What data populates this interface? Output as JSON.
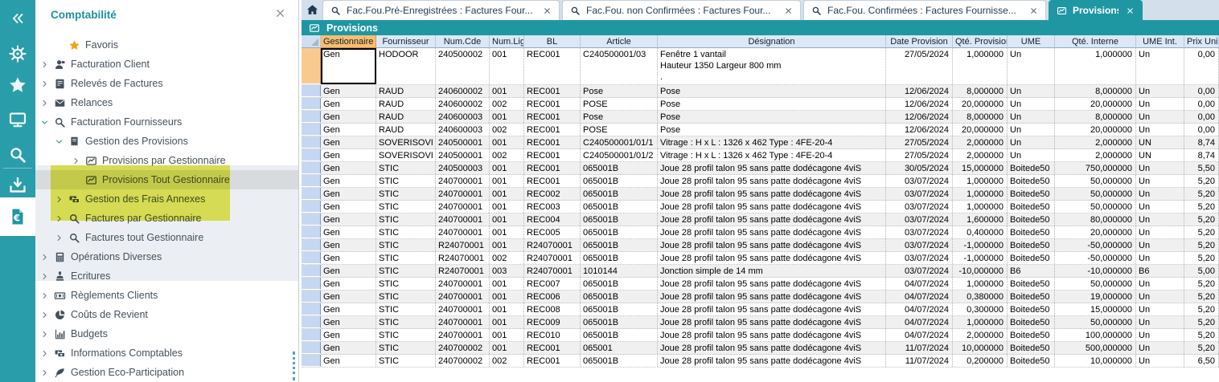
{
  "colors": {
    "teal_bar": "#1f97a3",
    "rail_teal": "#2a9daa",
    "sidebar_title_teal": "#1b93a0",
    "highlight_yellow": "#e7ea55",
    "selected_row_gray": "#d8dbde",
    "header_orange": "#f6be72",
    "rowhead_blue": "#c6d7f1",
    "rowhead_selected_orange": "#f9ca90",
    "favorites_star": "#f2a60d"
  },
  "rail": {
    "items": [
      {
        "name": "collapse",
        "icon": "chevrons-left",
        "active": false
      },
      {
        "name": "settings",
        "icon": "wheel",
        "active": false
      },
      {
        "name": "favorites",
        "icon": "star",
        "active": false
      },
      {
        "name": "workstation",
        "icon": "monitor",
        "active": false
      },
      {
        "name": "search",
        "icon": "search",
        "active": false
      },
      {
        "name": "import",
        "icon": "download-tray",
        "active": false
      },
      {
        "name": "accounting",
        "icon": "euro-document",
        "active": true
      }
    ]
  },
  "sidebar": {
    "title": "Comptabilité",
    "close_icon": "close",
    "items": [
      {
        "label": "Favoris",
        "icon": "star",
        "depth": 1,
        "chevron": "none",
        "icon_color": "#f2a60d"
      },
      {
        "label": "Facturation Client",
        "icon": "person",
        "depth": 0,
        "chevron": "collapsed"
      },
      {
        "label": "Relevés de Factures",
        "icon": "invoice-sheet",
        "depth": 0,
        "chevron": "collapsed"
      },
      {
        "label": "Relances",
        "icon": "envelope",
        "depth": 0,
        "chevron": "collapsed"
      },
      {
        "label": "Facturation Fournisseurs",
        "icon": "search",
        "depth": 0,
        "chevron": "expanded"
      },
      {
        "label": "Gestion des Provisions",
        "icon": "receipt",
        "depth": 1,
        "chevron": "expanded",
        "highlighted": true
      },
      {
        "label": "Provisions par Gestionnaire",
        "icon": "chart-line",
        "depth": 2,
        "chevron": "collapsed",
        "highlighted": true
      },
      {
        "label": "Provisions Tout Gestionnaire",
        "icon": "chart-line",
        "depth": 2,
        "chevron": "none",
        "selected": true,
        "highlighted": true
      },
      {
        "label": "Gestion des Frais Annexes",
        "icon": "money-transfer",
        "depth": 1,
        "chevron": "collapsed"
      },
      {
        "label": "Factures par Gestionnaire",
        "icon": "search",
        "depth": 1,
        "chevron": "collapsed"
      },
      {
        "label": "Factures tout Gestionnaire",
        "icon": "search",
        "depth": 1,
        "chevron": "collapsed"
      },
      {
        "label": "Opérations Diverses",
        "icon": "calculator",
        "depth": 0,
        "chevron": "collapsed"
      },
      {
        "label": "Ecritures",
        "icon": "stamp",
        "depth": 0,
        "chevron": "collapsed"
      },
      {
        "label": "Règlements Clients",
        "icon": "banknote",
        "depth": 0,
        "chevron": "collapsed"
      },
      {
        "label": "Coûts de Revient",
        "icon": "pie-chart",
        "depth": 0,
        "chevron": "collapsed"
      },
      {
        "label": "Budgets",
        "icon": "bar-chart",
        "depth": 0,
        "chevron": "collapsed"
      },
      {
        "label": "Informations Comptables",
        "icon": "money-transfer",
        "depth": 0,
        "chevron": "collapsed"
      },
      {
        "label": "Gestion Eco-Participation",
        "icon": "leaf",
        "depth": 0,
        "chevron": "collapsed"
      }
    ]
  },
  "tabs": {
    "home_icon": "home",
    "items": [
      {
        "label": "Fac.Fou.Pré-Enregistrées : Factures Four...",
        "icon": "search",
        "closable": true,
        "active": false
      },
      {
        "label": "Fac.Fou. non Confirmées : Factures Four...",
        "icon": "search",
        "closable": true,
        "active": false
      },
      {
        "label": "Fac.Fou. Confirmées : Factures Fournisse...",
        "icon": "search",
        "closable": true,
        "active": false
      },
      {
        "label": "Provisions",
        "icon": "chart-line",
        "closable": true,
        "active": true
      }
    ]
  },
  "view": {
    "title": "Provisions",
    "icon": "chart-line"
  },
  "table": {
    "headers": [
      "Gestionnaire",
      "Fournisseur",
      "Num.Cde",
      "Num.Lig",
      "BL",
      "Article",
      "Désignation",
      "Date Provision",
      "Qté. Provision",
      "UME",
      "Qté. Interne",
      "UME Int.",
      "Prix Uni"
    ],
    "selection": {
      "selected_column": "Gestionnaire",
      "focused_row": 1,
      "focused_column": "Gestionnaire"
    },
    "rows": [
      [
        "Gen",
        "HODOOR",
        "240500002",
        "001",
        "REC001",
        "C240500001/03",
        "Fenêtre 1 vantail\n Hauteur 1350 Largeur 800 mm\n.",
        "27/05/2024",
        "1,000000",
        "Un",
        "1,000000",
        "Un",
        "0,00"
      ],
      [
        "Gen",
        "RAUD",
        "240600002",
        "001",
        "REC001",
        "Pose",
        "Pose",
        "12/06/2024",
        "8,000000",
        "Un",
        "8,000000",
        "Un",
        "0,00"
      ],
      [
        "Gen",
        "RAUD",
        "240600002",
        "002",
        "REC001",
        "POSE",
        "Pose",
        "12/06/2024",
        "20,000000",
        "Un",
        "20,000000",
        "Un",
        "0,00"
      ],
      [
        "Gen",
        "RAUD",
        "240600003",
        "001",
        "REC001",
        "Pose",
        "Pose",
        "12/06/2024",
        "8,000000",
        "Un",
        "8,000000",
        "Un",
        "0,00"
      ],
      [
        "Gen",
        "RAUD",
        "240600003",
        "002",
        "REC001",
        "POSE",
        "Pose",
        "12/06/2024",
        "20,000000",
        "Un",
        "20,000000",
        "Un",
        "0,00"
      ],
      [
        "Gen",
        "SOVERISOVI",
        "240500001",
        "001",
        "REC001",
        "C240500001/01/1",
        "Vitrage : H x L : 1326 x 462 Type : 4FE-20-4",
        "27/05/2024",
        "2,000000",
        "Un",
        "2,000000",
        "UN",
        "8,74"
      ],
      [
        "Gen",
        "SOVERISOVI",
        "240500001",
        "002",
        "REC001",
        "C240500001/01/2",
        "Vitrage : H x L : 1326 x 462 Type : 4FE-20-4",
        "27/05/2024",
        "2,000000",
        "Un",
        "2,000000",
        "UN",
        "8,74"
      ],
      [
        "Gen",
        "STIC",
        "240500003",
        "001",
        "REC001",
        "065001B",
        "Joue 28 profil talon 95 sans patte dodécagone 4viS",
        "30/05/2024",
        "15,000000",
        "Boitede50",
        "750,000000",
        "Un",
        "5,50"
      ],
      [
        "Gen",
        "STIC",
        "240700001",
        "001",
        "REC001",
        "065001B",
        "Joue 28 profil talon 95 sans patte dodécagone 4viS",
        "03/07/2024",
        "1,000000",
        "Boitede50",
        "50,000000",
        "Un",
        "5,20"
      ],
      [
        "Gen",
        "STIC",
        "240700001",
        "001",
        "REC002",
        "065001B",
        "Joue 28 profil talon 95 sans patte dodécagone 4viS",
        "03/07/2024",
        "1,000000",
        "Boitede50",
        "50,000000",
        "Un",
        "5,20"
      ],
      [
        "Gen",
        "STIC",
        "240700001",
        "001",
        "REC003",
        "065001B",
        "Joue 28 profil talon 95 sans patte dodécagone 4viS",
        "03/07/2024",
        "1,000000",
        "Boitede50",
        "50,000000",
        "Un",
        "5,20"
      ],
      [
        "Gen",
        "STIC",
        "240700001",
        "001",
        "REC004",
        "065001B",
        "Joue 28 profil talon 95 sans patte dodécagone 4viS",
        "03/07/2024",
        "1,600000",
        "Boitede50",
        "80,000000",
        "Un",
        "5,20"
      ],
      [
        "Gen",
        "STIC",
        "240700001",
        "001",
        "REC005",
        "065001B",
        "Joue 28 profil talon 95 sans patte dodécagone 4viS",
        "03/07/2024",
        "0,400000",
        "Boitede50",
        "20,000000",
        "Un",
        "5,20"
      ],
      [
        "Gen",
        "STIC",
        "R24070001",
        "001",
        "R24070001",
        "065001B",
        "Joue 28 profil talon 95 sans patte dodécagone 4viS",
        "03/07/2024",
        "-1,000000",
        "Boitede50",
        "-50,000000",
        "Un",
        "5,20"
      ],
      [
        "Gen",
        "STIC",
        "R24070001",
        "002",
        "R24070001",
        "065001B",
        "Joue 28 profil talon 95 sans patte dodécagone 4viS",
        "03/07/2024",
        "-1,000000",
        "Boitede50",
        "-50,000000",
        "Un",
        "5,20"
      ],
      [
        "Gen",
        "STIC",
        "R24070001",
        "003",
        "R24070001",
        "1010144",
        "Jonction simple de 14 mm",
        "03/07/2024",
        "-10,000000",
        "B6",
        "-10,000000",
        "B6",
        "5,00"
      ],
      [
        "Gen",
        "STIC",
        "240700001",
        "001",
        "REC007",
        "065001B",
        "Joue 28 profil talon 95 sans patte dodécagone 4viS",
        "04/07/2024",
        "1,000000",
        "Boitede50",
        "50,000000",
        "Un",
        "5,20"
      ],
      [
        "Gen",
        "STIC",
        "240700001",
        "001",
        "REC006",
        "065001B",
        "Joue 28 profil talon 95 sans patte dodécagone 4viS",
        "04/07/2024",
        "0,380000",
        "Boitede50",
        "19,000000",
        "Un",
        "5,20"
      ],
      [
        "Gen",
        "STIC",
        "240700001",
        "001",
        "REC008",
        "065001B",
        "Joue 28 profil talon 95 sans patte dodécagone 4viS",
        "04/07/2024",
        "0,300000",
        "Boitede50",
        "15,000000",
        "Un",
        "5,20"
      ],
      [
        "Gen",
        "STIC",
        "240700001",
        "001",
        "REC009",
        "065001B",
        "Joue 28 profil talon 95 sans patte dodécagone 4viS",
        "04/07/2024",
        "1,000000",
        "Boitede50",
        "50,000000",
        "Un",
        "5,20"
      ],
      [
        "Gen",
        "STIC",
        "240700001",
        "001",
        "REC010",
        "065001B",
        "Joue 28 profil talon 95 sans patte dodécagone 4viS",
        "04/07/2024",
        "2,000000",
        "Boitede50",
        "100,000000",
        "Un",
        "5,20"
      ],
      [
        "Gen",
        "STIC",
        "240700002",
        "001",
        "REC001",
        "065001",
        "Joue 28 profil talon 95 sans patte dodécagone 4viS",
        "11/07/2024",
        "10,000000",
        "Boitede50",
        "500,000000",
        "Un",
        "5,20"
      ],
      [
        "Gen",
        "STIC",
        "240700002",
        "002",
        "REC001",
        "065001B",
        "Joue 28 profil talon 95 sans patte dodécagone 4viS",
        "11/07/2024",
        "0,200000",
        "Boitede50",
        "10,000000",
        "Un",
        "6,50"
      ]
    ]
  }
}
